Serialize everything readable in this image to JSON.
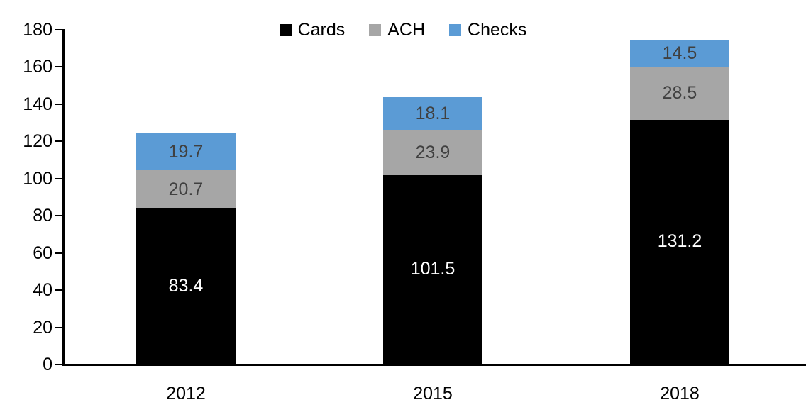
{
  "chart_data": {
    "type": "bar",
    "stacked": true,
    "title": "",
    "xlabel": "",
    "ylabel": "",
    "categories": [
      "2012",
      "2015",
      "2018"
    ],
    "series": [
      {
        "name": "Cards",
        "color": "#000000",
        "label_color": "#ffffff",
        "values": [
          83.4,
          101.5,
          131.2
        ]
      },
      {
        "name": "ACH",
        "color": "#a6a6a6",
        "label_color": "#404040",
        "values": [
          20.7,
          23.9,
          28.5
        ]
      },
      {
        "name": "Checks",
        "color": "#5b9bd5",
        "label_color": "#404040",
        "values": [
          19.7,
          18.1,
          14.5
        ]
      }
    ],
    "totals": [
      123.8,
      143.5,
      174.2
    ],
    "ylim": [
      0,
      180
    ],
    "yticks": [
      0,
      20,
      40,
      60,
      80,
      100,
      120,
      140,
      160,
      180
    ],
    "grid": false,
    "legend_position": "top-center",
    "axis_color": "#000000",
    "tick_label_color": "#000000",
    "value_label_decimals": 1
  }
}
